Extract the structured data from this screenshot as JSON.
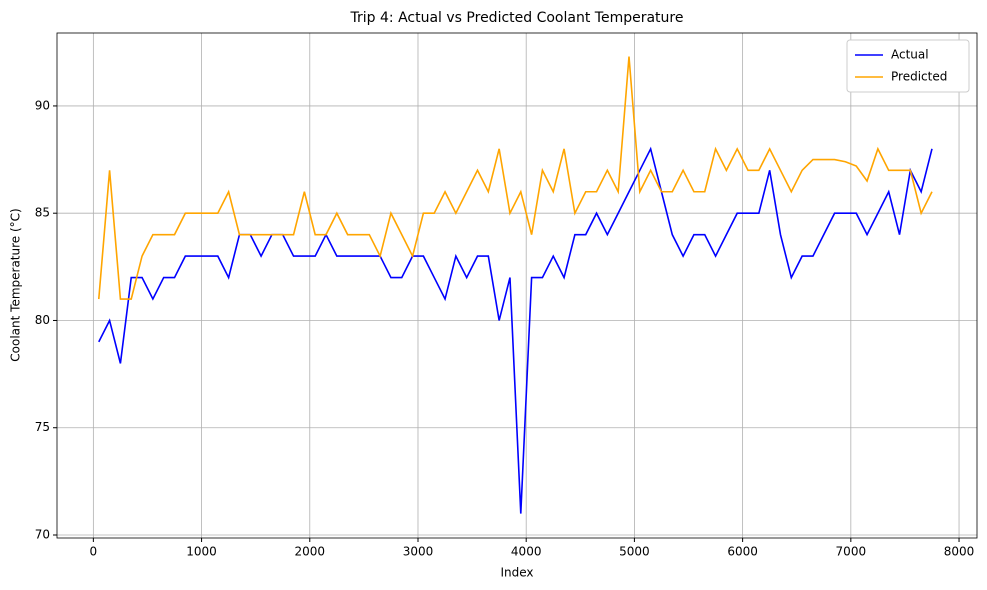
{
  "chart_data": {
    "type": "line",
    "title": "Trip 4: Actual vs Predicted Coolant Temperature",
    "x_label": "Index",
    "y_label": "Coolant Temperature (°C)",
    "x": [
      50,
      150,
      250,
      350,
      450,
      550,
      650,
      750,
      850,
      950,
      1050,
      1150,
      1250,
      1350,
      1450,
      1550,
      1650,
      1750,
      1850,
      1950,
      2050,
      2150,
      2250,
      2350,
      2450,
      2550,
      2650,
      2750,
      2850,
      2950,
      3050,
      3150,
      3250,
      3350,
      3450,
      3550,
      3650,
      3750,
      3850,
      3950,
      4050,
      4150,
      4250,
      4350,
      4450,
      4550,
      4650,
      4750,
      4850,
      4950,
      5050,
      5150,
      5250,
      5350,
      5450,
      5550,
      5650,
      5750,
      5850,
      5950,
      6050,
      6150,
      6250,
      6350,
      6450,
      6550,
      6650,
      6750,
      6850,
      6950,
      7050,
      7150,
      7250,
      7350,
      7450,
      7550,
      7650,
      7750
    ],
    "series": [
      {
        "name": "Actual",
        "color": "#0000ff",
        "values": [
          79,
          80,
          78,
          82,
          82,
          81,
          82,
          82,
          83,
          83,
          83,
          83,
          82,
          84,
          84,
          83,
          84,
          84,
          83,
          83,
          83,
          84,
          83,
          83,
          83,
          83,
          83,
          82,
          82,
          83,
          83,
          82,
          81,
          83,
          82,
          83,
          83,
          80,
          82,
          71,
          82,
          82,
          83,
          82,
          84,
          84,
          85,
          84,
          85,
          86,
          87,
          88,
          86,
          84,
          83,
          84,
          84,
          83,
          84,
          85,
          85,
          85,
          87,
          84,
          82,
          83,
          83,
          84,
          85,
          85,
          85,
          84,
          85,
          86,
          84,
          87,
          86,
          88
        ]
      },
      {
        "name": "Predicted",
        "color": "#ffa500",
        "values": [
          81,
          87,
          81,
          81,
          83,
          84,
          84,
          84,
          85,
          85,
          85,
          85,
          86,
          84,
          84,
          84,
          84,
          84,
          84,
          86,
          84,
          84,
          85,
          84,
          84,
          84,
          83,
          85,
          84,
          83,
          85,
          85,
          86,
          85,
          86,
          87,
          86,
          88,
          85,
          86,
          84,
          87,
          86,
          88,
          85,
          86,
          86,
          87,
          86,
          92.3,
          86,
          87,
          86,
          86,
          87,
          86,
          86,
          88,
          87,
          88,
          87,
          87,
          88,
          87,
          86,
          87,
          87.5,
          87.5,
          87.5,
          87.4,
          87.2,
          86.5,
          88,
          87,
          87,
          87,
          85,
          86
        ]
      }
    ],
    "xlim": [
      -336,
      8166
    ],
    "ylim": [
      69.86,
      93.4
    ],
    "xticks": [
      0,
      1000,
      2000,
      3000,
      4000,
      5000,
      6000,
      7000,
      8000
    ],
    "yticks": [
      70,
      75,
      80,
      85,
      90
    ],
    "grid": true,
    "legend": "upper right"
  }
}
